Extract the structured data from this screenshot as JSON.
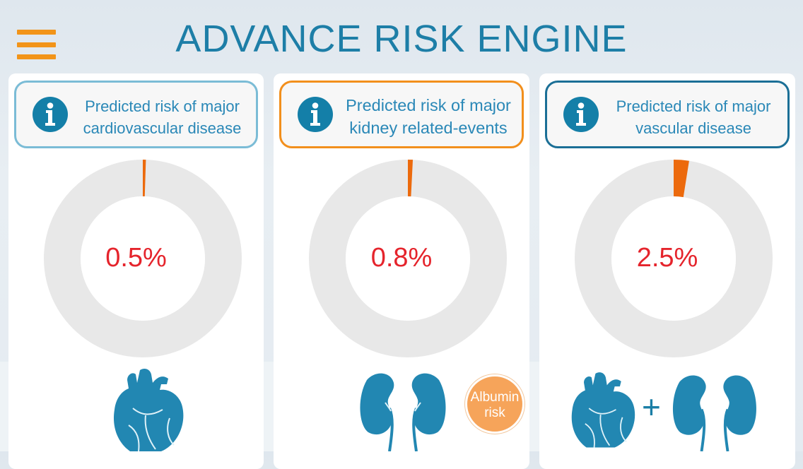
{
  "app": {
    "title": "ADVANCE RISK ENGINE"
  },
  "colors": {
    "accent": "#1d7ea7",
    "menu": "#f29419",
    "risk_text": "#e5242c",
    "donut_bg": "#e8e8e8",
    "wedge": "#ec6a0d"
  },
  "panels": [
    {
      "info_line1": "Predicted risk of major",
      "info_line2": "cardiovascular disease",
      "risk_label": "0.5%",
      "risk_fraction": 0.005,
      "icon": "info-icon",
      "organ_icon": "heart-icon"
    },
    {
      "info_line1": "Predicted risk of major",
      "info_line2": "kidney related-events",
      "risk_label": "0.8%",
      "risk_fraction": 0.008,
      "icon": "info-icon",
      "organ_icon": "kidneys-icon"
    },
    {
      "info_line1": "Predicted risk of major",
      "info_line2": "vascular disease",
      "risk_label": "2.5%",
      "risk_fraction": 0.025,
      "icon": "info-icon",
      "organ_icon": "heart-and-kidneys-icon"
    }
  ],
  "albumin": {
    "line1": "Albumin",
    "line2": "risk"
  },
  "plus_sign": "+"
}
